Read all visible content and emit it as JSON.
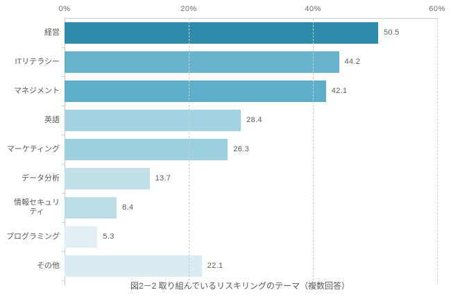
{
  "chart_data": {
    "type": "bar",
    "orientation": "horizontal",
    "title": "図2－2 取り組んでいるリスキリングのテーマ（複数回答）",
    "categories": [
      "経営",
      "ITリテラシー",
      "マネジメント",
      "英語",
      "マーケティング",
      "データ分析",
      "情報セキュリティ",
      "プログラミング",
      "その他"
    ],
    "display_categories": [
      "経営",
      "ITリテラシー",
      "マネジメント",
      "英語",
      "マーケティング",
      "データ分析",
      "情報セキュリ\nティ",
      "プログラミング",
      "その他"
    ],
    "values": [
      50.5,
      44.2,
      42.1,
      28.4,
      26.3,
      13.7,
      8.4,
      5.3,
      22.1
    ],
    "value_labels": [
      "50.5",
      "44.2",
      "42.1",
      "28.4",
      "26.3",
      "13.7",
      "8.4",
      "5.3",
      "22.1"
    ],
    "bar_colors": [
      "#2e8cab",
      "#68b4cc",
      "#5fafc8",
      "#a3d2e0",
      "#9dcfdd",
      "#c3e0ea",
      "#bcdce7",
      "#e2f0f5",
      "#dcebf2"
    ],
    "x_axis": {
      "position": "top",
      "ticks": [
        "0%",
        "20%",
        "40%",
        "60%"
      ],
      "min": 0,
      "max": 60,
      "gridline_style": "dashed"
    },
    "legend": null,
    "grid": true
  }
}
